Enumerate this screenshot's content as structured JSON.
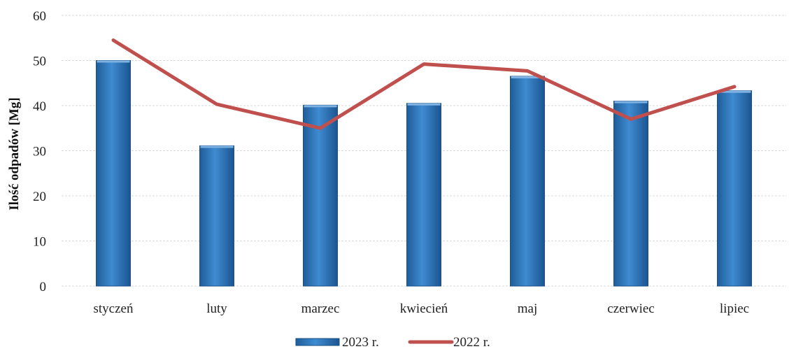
{
  "chart_data": {
    "type": "bar",
    "title": "",
    "xlabel": "",
    "ylabel": "Ilość odpadów [Mg]",
    "ylim": [
      0,
      60
    ],
    "yticks": [
      0,
      10,
      20,
      30,
      40,
      50,
      60
    ],
    "grid": true,
    "legend_position": "bottom",
    "categories": [
      "styczeń",
      "luty",
      "marzec",
      "kwiecień",
      "maj",
      "czerwiec",
      "lipiec"
    ],
    "series": [
      {
        "name": "2023 r.",
        "type": "bar",
        "color": "#2e75b6",
        "values": [
          50.0,
          31.1,
          40.1,
          40.5,
          46.5,
          41.0,
          43.3
        ]
      },
      {
        "name": "2022 r.",
        "type": "line",
        "color": "#c0504d",
        "values": [
          54.5,
          40.3,
          35.0,
          49.2,
          47.7,
          37.0,
          44.2
        ]
      }
    ]
  }
}
